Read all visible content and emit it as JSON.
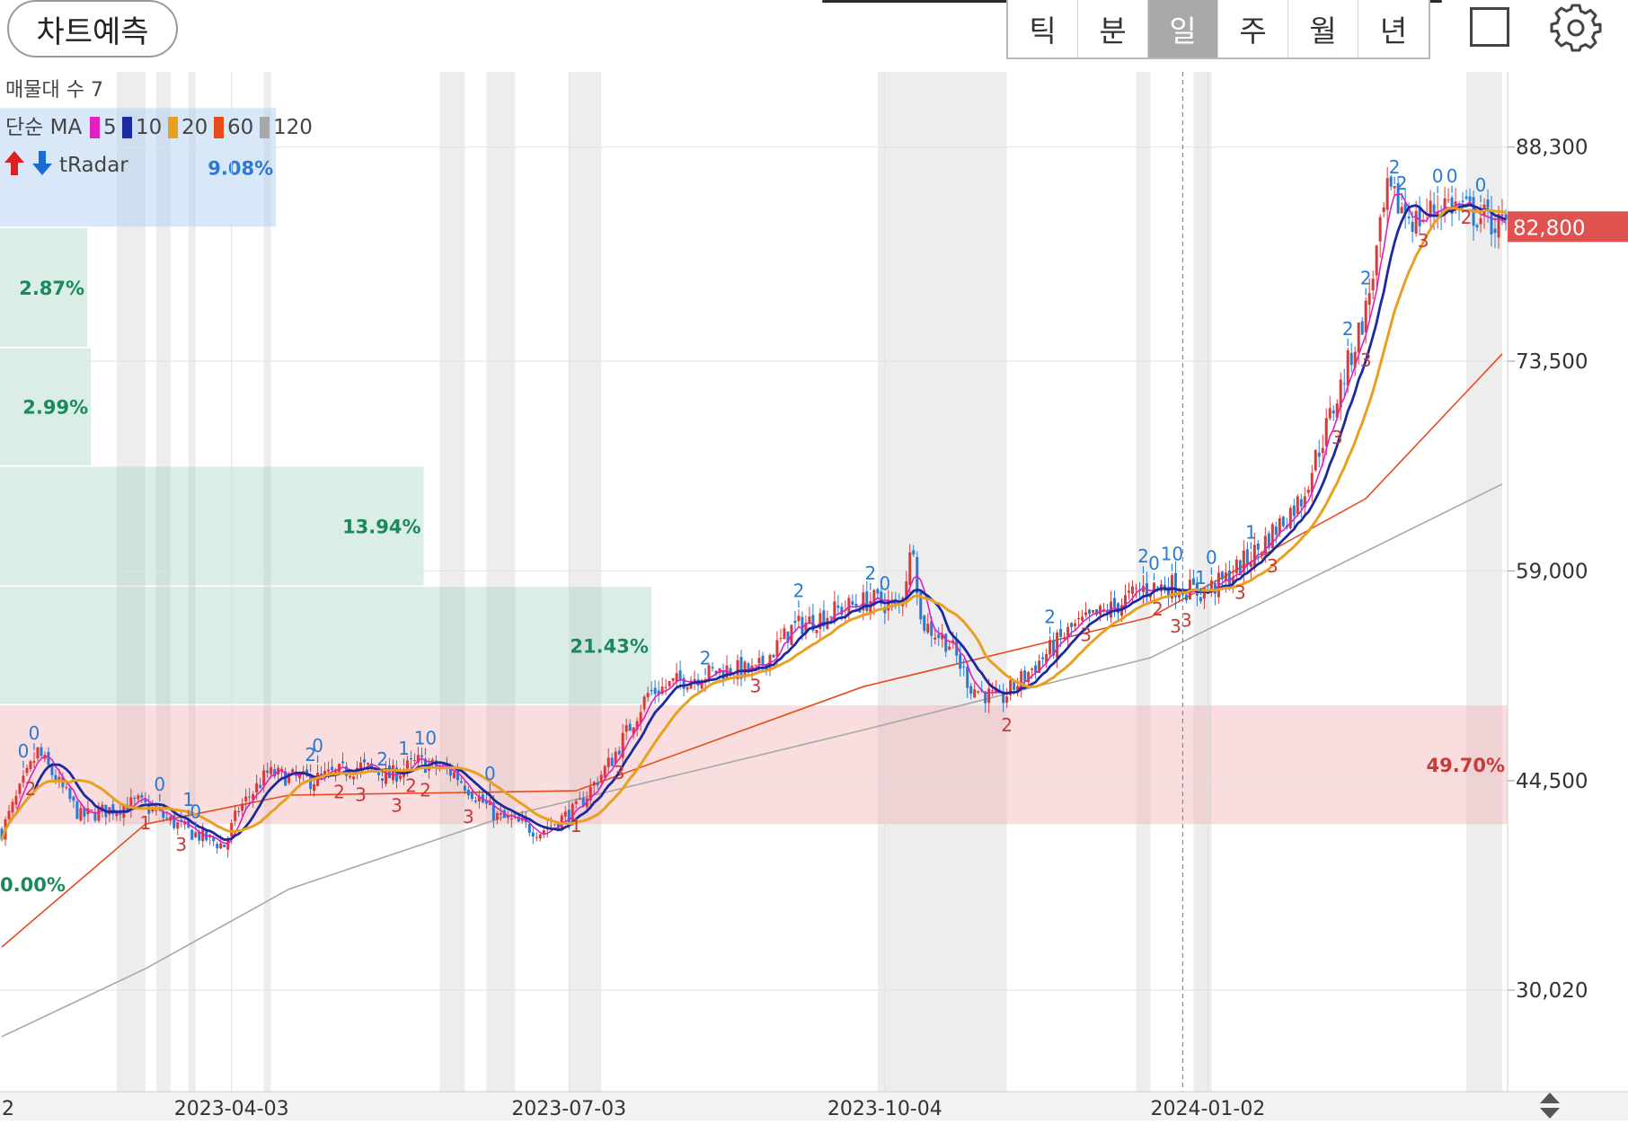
{
  "topbar": {
    "predict_label": "차트예측",
    "periods": [
      "틱",
      "분",
      "일",
      "주",
      "월",
      "년"
    ],
    "active_period": "일"
  },
  "legend": {
    "volume_profile_label": "매물대 수 7",
    "ma_label": "단순 MA",
    "ma_items": [
      {
        "label": "5",
        "color": "#e020c0"
      },
      {
        "label": "10",
        "color": "#1a2aa0"
      },
      {
        "label": "20",
        "color": "#e8a020"
      },
      {
        "label": "60",
        "color": "#e84a1a"
      },
      {
        "label": "120",
        "color": "#a8a8a8"
      }
    ],
    "tradar_label": "tRadar"
  },
  "chart_data": {
    "type": "candlestick",
    "y_ticks": [
      "88,300",
      "73,500",
      "59,000",
      "44,500",
      "30,020"
    ],
    "y_tick_values": [
      88300,
      73500,
      59000,
      44500,
      30020
    ],
    "ylim": [
      23000,
      93500
    ],
    "current_price_label": "82,800",
    "current_price": 82800,
    "x_ticks": [
      "2023-04-03",
      "2023-07-03",
      "2023-10-04",
      "2024-01-02"
    ],
    "x_tick_partial": "2",
    "volume_profile": [
      {
        "range": [
          82800,
          91000
        ],
        "percent": "9.08%",
        "color": "blue"
      },
      {
        "range": [
          74500,
          82700
        ],
        "percent": "2.87%",
        "color": "green"
      },
      {
        "range": [
          66300,
          74400
        ],
        "percent": "2.99%",
        "color": "green"
      },
      {
        "range": [
          58000,
          66200
        ],
        "percent": "13.94%",
        "color": "green"
      },
      {
        "range": [
          49800,
          57900
        ],
        "percent": "21.43%",
        "color": "green"
      },
      {
        "range": [
          41500,
          49700
        ],
        "percent": "49.70%",
        "color": "red"
      },
      {
        "range": [
          33300,
          41400
        ],
        "percent": "0.00%",
        "color": "green"
      }
    ],
    "price_path": [
      [
        0,
        41000
      ],
      [
        10,
        46500
      ],
      [
        22,
        42000
      ],
      [
        38,
        43000
      ],
      [
        52,
        41000
      ],
      [
        62,
        40000
      ],
      [
        66,
        42500
      ],
      [
        74,
        45000
      ],
      [
        86,
        44500
      ],
      [
        100,
        45500
      ],
      [
        108,
        44800
      ],
      [
        116,
        45800
      ],
      [
        126,
        45000
      ],
      [
        138,
        42000
      ],
      [
        150,
        41000
      ],
      [
        160,
        42500
      ],
      [
        170,
        46000
      ],
      [
        180,
        50500
      ],
      [
        190,
        51500
      ],
      [
        202,
        52200
      ],
      [
        210,
        52000
      ],
      [
        220,
        55000
      ],
      [
        232,
        56200
      ],
      [
        242,
        57000
      ],
      [
        250,
        56500
      ],
      [
        254,
        61000
      ],
      [
        256,
        55500
      ],
      [
        264,
        54000
      ],
      [
        270,
        51000
      ],
      [
        278,
        50000
      ],
      [
        288,
        52500
      ],
      [
        298,
        55000
      ],
      [
        310,
        56500
      ],
      [
        318,
        57800
      ],
      [
        326,
        58000
      ],
      [
        334,
        57500
      ],
      [
        340,
        58200
      ],
      [
        350,
        60500
      ],
      [
        362,
        64000
      ],
      [
        372,
        71000
      ],
      [
        380,
        77000
      ],
      [
        386,
        85000
      ],
      [
        394,
        83200
      ],
      [
        402,
        84500
      ],
      [
        412,
        83500
      ],
      [
        418,
        82800
      ]
    ],
    "ma_series": [
      {
        "period": "5",
        "name": "5",
        "color": "#e020c0",
        "width": 1.6
      },
      {
        "period": "10",
        "name": "10",
        "color": "#1a2aa0",
        "width": 2.8
      },
      {
        "period": "20",
        "name": "20",
        "color": "#e8a020",
        "width": 3.0
      }
    ],
    "ma60_path": [
      [
        0,
        33000
      ],
      [
        40,
        41500
      ],
      [
        80,
        43500
      ],
      [
        160,
        43800
      ],
      [
        240,
        51000
      ],
      [
        320,
        55800
      ],
      [
        380,
        64000
      ],
      [
        418,
        74000
      ]
    ],
    "ma120_path": [
      [
        0,
        26800
      ],
      [
        40,
        31500
      ],
      [
        80,
        37000
      ],
      [
        140,
        42000
      ],
      [
        240,
        48000
      ],
      [
        320,
        53000
      ],
      [
        418,
        65000
      ]
    ],
    "markers": [
      {
        "i": 6,
        "label": "0",
        "type": "up"
      },
      {
        "i": 9,
        "label": "0",
        "type": "up"
      },
      {
        "i": 44,
        "label": "0",
        "type": "up"
      },
      {
        "i": 52,
        "label": "1",
        "type": "up"
      },
      {
        "i": 54,
        "label": "0",
        "type": "up"
      },
      {
        "i": 86,
        "label": "2",
        "type": "up"
      },
      {
        "i": 88,
        "label": "0",
        "type": "up"
      },
      {
        "i": 106,
        "label": "2",
        "type": "up"
      },
      {
        "i": 112,
        "label": "1",
        "type": "up"
      },
      {
        "i": 118,
        "label": "10",
        "type": "up"
      },
      {
        "i": 136,
        "label": "0",
        "type": "up"
      },
      {
        "i": 196,
        "label": "2",
        "type": "up"
      },
      {
        "i": 222,
        "label": "2",
        "type": "up"
      },
      {
        "i": 242,
        "label": "2",
        "type": "up"
      },
      {
        "i": 246,
        "label": "0",
        "type": "up"
      },
      {
        "i": 292,
        "label": "2",
        "type": "up"
      },
      {
        "i": 318,
        "label": "2",
        "type": "up"
      },
      {
        "i": 321,
        "label": "0",
        "type": "up"
      },
      {
        "i": 326,
        "label": "10",
        "type": "up"
      },
      {
        "i": 334,
        "label": "1",
        "type": "up"
      },
      {
        "i": 337,
        "label": "0",
        "type": "up"
      },
      {
        "i": 348,
        "label": "1",
        "type": "up"
      },
      {
        "i": 375,
        "label": "2",
        "type": "up"
      },
      {
        "i": 380,
        "label": "2",
        "type": "up"
      },
      {
        "i": 390,
        "label": "2",
        "type": "up"
      },
      {
        "i": 404,
        "label": "0",
        "type": "up"
      },
      {
        "i": 400,
        "label": "0",
        "type": "up"
      },
      {
        "i": 412,
        "label": "0",
        "type": "up"
      },
      {
        "i": 388,
        "label": "2",
        "type": "up"
      },
      {
        "i": 8,
        "label": "2",
        "type": "down"
      },
      {
        "i": 40,
        "label": "1",
        "type": "down"
      },
      {
        "i": 50,
        "label": "3",
        "type": "down"
      },
      {
        "i": 94,
        "label": "2",
        "type": "down"
      },
      {
        "i": 100,
        "label": "3",
        "type": "down"
      },
      {
        "i": 110,
        "label": "3",
        "type": "down"
      },
      {
        "i": 114,
        "label": "2",
        "type": "down"
      },
      {
        "i": 118,
        "label": "2",
        "type": "down"
      },
      {
        "i": 130,
        "label": "3",
        "type": "down"
      },
      {
        "i": 160,
        "label": "1",
        "type": "down"
      },
      {
        "i": 172,
        "label": "3",
        "type": "down"
      },
      {
        "i": 210,
        "label": "3",
        "type": "down"
      },
      {
        "i": 280,
        "label": "2",
        "type": "down"
      },
      {
        "i": 302,
        "label": "3",
        "type": "down"
      },
      {
        "i": 322,
        "label": "2",
        "type": "down"
      },
      {
        "i": 327,
        "label": "3",
        "type": "down"
      },
      {
        "i": 330,
        "label": "3",
        "type": "down"
      },
      {
        "i": 345,
        "label": "3",
        "type": "down"
      },
      {
        "i": 354,
        "label": "3",
        "type": "down"
      },
      {
        "i": 372,
        "label": "3",
        "type": "down"
      },
      {
        "i": 380,
        "label": "3",
        "type": "down"
      },
      {
        "i": 396,
        "label": "3",
        "type": "down"
      },
      {
        "i": 408,
        "label": "2",
        "type": "down"
      }
    ],
    "shaded_columns": [
      [
        32,
        40
      ],
      [
        43,
        47
      ],
      [
        52,
        54
      ],
      [
        73,
        75
      ],
      [
        122,
        129
      ],
      [
        135,
        143
      ],
      [
        158,
        167
      ],
      [
        244,
        280
      ],
      [
        316,
        320
      ],
      [
        332,
        337
      ],
      [
        408,
        418
      ]
    ],
    "dashed_cursor_index": 329
  }
}
